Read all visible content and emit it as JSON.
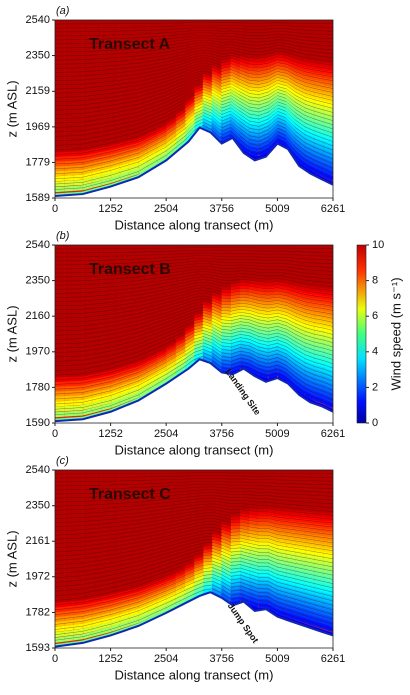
{
  "chart_data": [
    {
      "type": "streamline",
      "panel": "(a)",
      "title": "Transect A",
      "ylabel": "z (m ASL)",
      "xlabel": "Distance along transect (m)",
      "xlim": [
        0,
        6261
      ],
      "xticks": [
        0,
        1252,
        2504,
        3756,
        5009,
        6261
      ],
      "ylim": [
        1589,
        2540
      ],
      "yticks": [
        1589,
        1779,
        1969,
        2159,
        2350,
        2540
      ],
      "terrain": {
        "x": [
          0,
          626,
          1252,
          1878,
          2504,
          3005,
          3256,
          3500,
          3756,
          4000,
          4250,
          4500,
          4750,
          5009,
          5250,
          5500,
          5750,
          6000,
          6261
        ],
        "values": [
          1600,
          1610,
          1650,
          1700,
          1790,
          1890,
          1965,
          1940,
          1880,
          1910,
          1830,
          1790,
          1810,
          1880,
          1850,
          1760,
          1720,
          1690,
          1660
        ]
      }
    },
    {
      "type": "streamline",
      "panel": "(b)",
      "title": "Transect B",
      "ylabel": "z (m ASL)",
      "xlabel": "Distance along transect (m)",
      "xlim": [
        0,
        6261
      ],
      "xticks": [
        0,
        1252,
        2504,
        3756,
        5009,
        6261
      ],
      "ylim": [
        1590,
        2540
      ],
      "yticks": [
        1590,
        1780,
        1970,
        2160,
        2350,
        2540
      ],
      "terrain": {
        "x": [
          0,
          626,
          1252,
          1878,
          2504,
          3005,
          3256,
          3500,
          3756,
          4000,
          4250,
          4500,
          4750,
          5009,
          5250,
          5500,
          5750,
          6000,
          6261
        ],
        "values": [
          1600,
          1610,
          1650,
          1710,
          1800,
          1880,
          1930,
          1910,
          1860,
          1850,
          1880,
          1840,
          1810,
          1830,
          1800,
          1740,
          1700,
          1680,
          1650
        ]
      },
      "annotation": "Landing Site",
      "colorbar": {
        "label": "Wind speed (m s⁻¹)",
        "lim": [
          0,
          10
        ],
        "ticks": [
          0,
          2,
          4,
          6,
          8,
          10
        ]
      }
    },
    {
      "type": "streamline",
      "panel": "(c)",
      "title": "Transect C",
      "ylabel": "z (m ASL)",
      "xlabel": "Distance along transect (m)",
      "xlim": [
        0,
        6261
      ],
      "xticks": [
        0,
        1252,
        2504,
        3756,
        5009,
        6261
      ],
      "ylim": [
        1593,
        2540
      ],
      "yticks": [
        1593,
        1782,
        1972,
        2161,
        2350,
        2540
      ],
      "terrain": {
        "x": [
          0,
          626,
          1252,
          1878,
          2504,
          3005,
          3256,
          3500,
          3756,
          4000,
          4250,
          4500,
          4750,
          5009,
          5250,
          5500,
          5750,
          6000,
          6261
        ],
        "values": [
          1600,
          1620,
          1660,
          1710,
          1780,
          1840,
          1870,
          1890,
          1860,
          1820,
          1840,
          1790,
          1800,
          1760,
          1740,
          1720,
          1700,
          1680,
          1660
        ]
      },
      "annotation": "Jump Spot"
    }
  ]
}
